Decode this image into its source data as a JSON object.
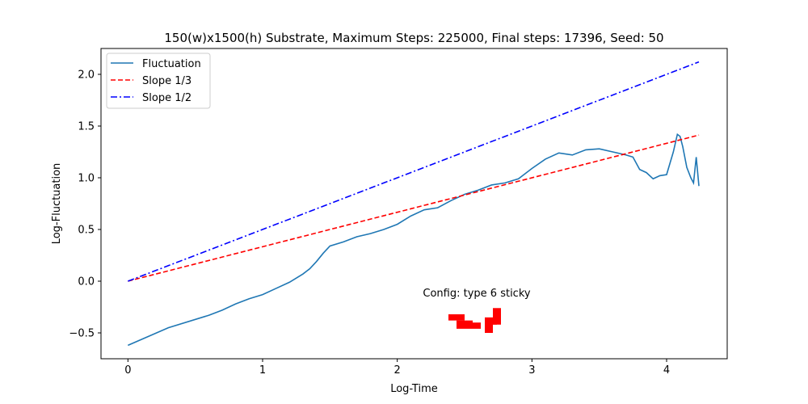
{
  "chart_data": {
    "type": "line",
    "title": "150(w)x1500(h) Substrate, Maximum Steps: 225000, Final steps: 17396, Seed: 50",
    "xlabel": "Log-Time",
    "ylabel": "Log-Fluctuation",
    "xlim": [
      -0.2,
      4.45
    ],
    "ylim": [
      -0.75,
      2.25
    ],
    "xticks": [
      0,
      1,
      2,
      3,
      4
    ],
    "xtick_labels": [
      "0",
      "1",
      "2",
      "3",
      "4"
    ],
    "yticks": [
      -0.5,
      0.0,
      0.5,
      1.0,
      1.5,
      2.0
    ],
    "ytick_labels": [
      "−0.5",
      "0.0",
      "0.5",
      "1.0",
      "1.5",
      "2.0"
    ],
    "grid": false,
    "legend_position": "top-left",
    "series": [
      {
        "name": "Fluctuation",
        "style": "solid",
        "color": "#1f77b4",
        "x": [
          0,
          0.3,
          0.6,
          0.7,
          0.8,
          0.9,
          1.0,
          1.1,
          1.2,
          1.3,
          1.35,
          1.4,
          1.45,
          1.5,
          1.6,
          1.7,
          1.8,
          1.9,
          2.0,
          2.1,
          2.2,
          2.3,
          2.4,
          2.5,
          2.6,
          2.7,
          2.8,
          2.9,
          3.0,
          3.1,
          3.2,
          3.3,
          3.4,
          3.5,
          3.6,
          3.7,
          3.75,
          3.8,
          3.85,
          3.9,
          3.95,
          4.0,
          4.05,
          4.08,
          4.1,
          4.12,
          4.15,
          4.18,
          4.2,
          4.22,
          4.24
        ],
        "y": [
          -0.62,
          -0.45,
          -0.33,
          -0.28,
          -0.22,
          -0.17,
          -0.13,
          -0.07,
          -0.01,
          0.07,
          0.12,
          0.19,
          0.27,
          0.34,
          0.38,
          0.43,
          0.46,
          0.5,
          0.55,
          0.63,
          0.69,
          0.71,
          0.78,
          0.84,
          0.88,
          0.93,
          0.95,
          0.99,
          1.09,
          1.18,
          1.24,
          1.22,
          1.27,
          1.28,
          1.25,
          1.22,
          1.2,
          1.08,
          1.05,
          0.99,
          1.02,
          1.03,
          1.25,
          1.42,
          1.4,
          1.3,
          1.1,
          1.0,
          0.95,
          1.2,
          0.92
        ]
      },
      {
        "name": "Slope 1/3",
        "style": "dashed",
        "color": "#ff0000",
        "x": [
          0,
          4.24
        ],
        "y": [
          0,
          1.413
        ]
      },
      {
        "name": "Slope 1/2",
        "style": "dashdot",
        "color": "#0000ff",
        "x": [
          0,
          4.24
        ],
        "y": [
          0,
          2.12
        ]
      }
    ],
    "annotation": {
      "text": "Config:  type 6 sticky",
      "x": 2.59,
      "y": -0.15
    },
    "config_shape": {
      "color": "#ff0000",
      "cells": [
        [
          2.38,
          -0.38,
          2.5,
          -0.32
        ],
        [
          2.44,
          -0.46,
          2.56,
          -0.38
        ],
        [
          2.56,
          -0.46,
          2.62,
          -0.4
        ],
        [
          2.65,
          -0.5,
          2.71,
          -0.38
        ],
        [
          2.65,
          -0.42,
          2.74,
          -0.35
        ],
        [
          2.71,
          -0.42,
          2.77,
          -0.26
        ]
      ]
    }
  }
}
